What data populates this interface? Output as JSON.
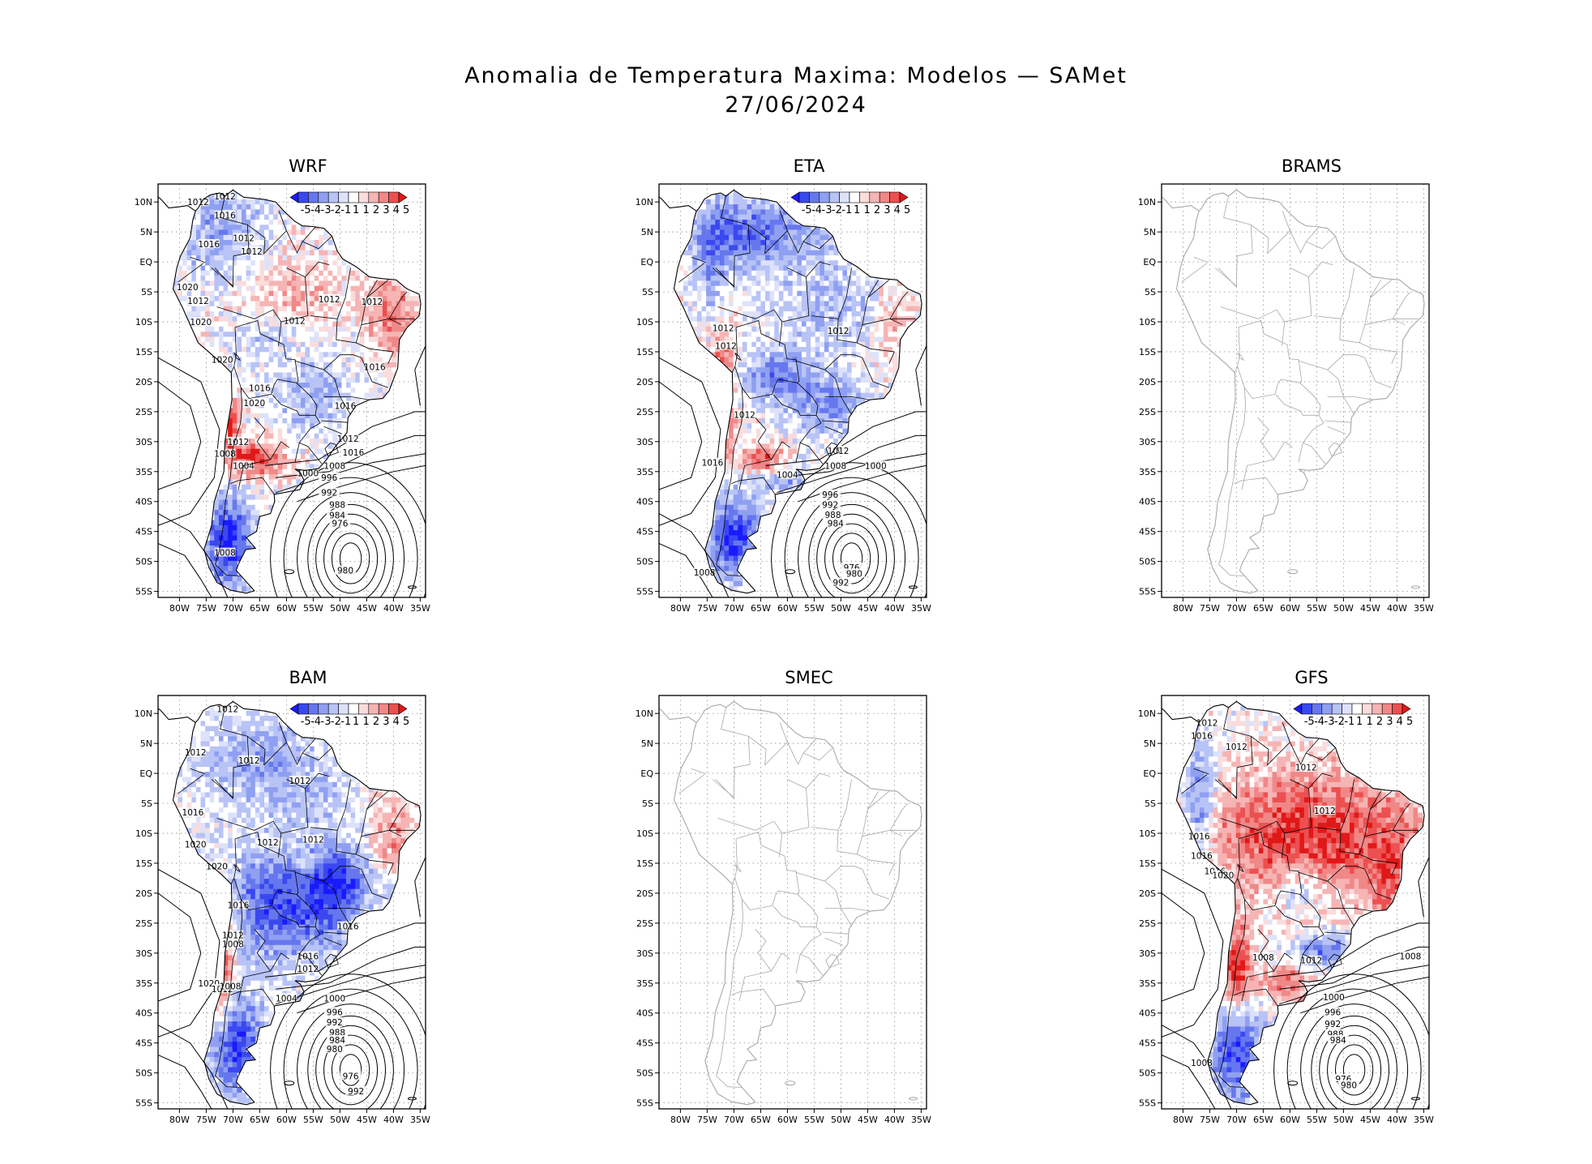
{
  "title": "Anomalia de Temperatura Maxima: Modelos — SAMet",
  "date": "27/06/2024",
  "lat_labels": [
    "10N",
    "5N",
    "EQ",
    "5S",
    "10S",
    "15S",
    "20S",
    "25S",
    "30S",
    "35S",
    "40S",
    "45S",
    "50S",
    "55S"
  ],
  "lon_labels": [
    "80W",
    "75W",
    "70W",
    "65W",
    "60W",
    "55W",
    "50W",
    "45W",
    "40W",
    "35W"
  ],
  "colorbar": {
    "labels": [
      "-5",
      "-4",
      "-3",
      "-2",
      "-1",
      "1",
      "1",
      "2",
      "3",
      "4",
      "5"
    ],
    "colors": [
      "#1a1aff",
      "#3a48f0",
      "#6677ee",
      "#8fa0f2",
      "#b8c3f6",
      "#dde2fa",
      "#ffffff",
      "#fadcdc",
      "#f6b4b4",
      "#f08888",
      "#ec5050",
      "#e01818"
    ]
  },
  "panels": [
    {
      "name": "WRF",
      "has_data": true,
      "scheme": "wrf",
      "labels": [
        "1012",
        "1012",
        "1016",
        "1016",
        "1012",
        "1012",
        "1020",
        "1012",
        "1012",
        "1012",
        "1012",
        "1020",
        "1020",
        "1016",
        "1016",
        "1020",
        "1016",
        "1012",
        "1012",
        "1016",
        "1008",
        "1008",
        "1004",
        "1000",
        "996",
        "992",
        "988",
        "984",
        "976",
        "980",
        "1008"
      ]
    },
    {
      "name": "ETA",
      "has_data": true,
      "scheme": "eta",
      "labels": [
        "1012",
        "1012",
        "1012",
        "1012",
        "1012",
        "1016",
        "1008",
        "1004",
        "1000",
        "996",
        "992",
        "988",
        "984",
        "976",
        "980",
        "992",
        "1008"
      ]
    },
    {
      "name": "BRAMS",
      "has_data": false,
      "scheme": "none",
      "labels": []
    },
    {
      "name": "BAM",
      "has_data": true,
      "scheme": "bam",
      "labels": [
        "1012",
        "1012",
        "1012",
        "1012",
        "1016",
        "1020",
        "1012",
        "1012",
        "1020",
        "1016",
        "1016",
        "1012",
        "1016",
        "1008",
        "1020",
        "1012",
        "1012",
        "1008",
        "1004",
        "1000",
        "996",
        "992",
        "988",
        "984",
        "980",
        "976",
        "992"
      ]
    },
    {
      "name": "SMEC",
      "has_data": false,
      "scheme": "none",
      "labels": []
    },
    {
      "name": "GFS",
      "has_data": true,
      "scheme": "gfs",
      "labels": [
        "1012",
        "1016",
        "1012",
        "1012",
        "1012",
        "1016",
        "1016",
        "1016",
        "1020",
        "1008",
        "1012",
        "1008",
        "1000",
        "996",
        "992",
        "988",
        "984",
        "976",
        "980",
        "1008"
      ]
    }
  ]
}
